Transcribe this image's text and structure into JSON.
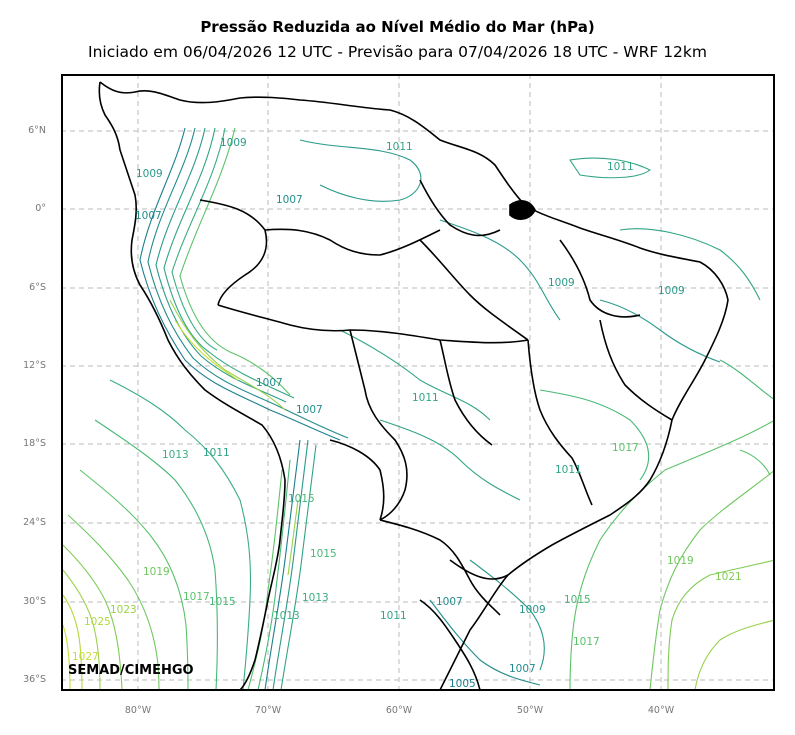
{
  "title": "Pressão Reduzida ao Nível Médio do Mar (hPa)",
  "subtitle": "Iniciado em 06/04/2026 12 UTC - Previsão para 07/04/2026 18 UTC - WRF 12km",
  "credit": "SEMAD/CIMEHGO",
  "lat_labels": [
    "6°N",
    "0°",
    "6°S",
    "12°S",
    "18°S",
    "24°S",
    "30°S",
    "36°S"
  ],
  "lon_labels": [
    "80°W",
    "70°W",
    "60°W",
    "50°W",
    "40°W"
  ],
  "contour_labels": [
    {
      "text": "1009",
      "color": "#2a9a8a"
    },
    {
      "text": "1009",
      "color": "#2a9a8a"
    },
    {
      "text": "1011",
      "color": "#31a486"
    },
    {
      "text": "1011",
      "color": "#31a486"
    },
    {
      "text": "1007",
      "color": "#228c8c"
    },
    {
      "text": "1007",
      "color": "#228c8c"
    },
    {
      "text": "1009",
      "color": "#2a9a8a"
    },
    {
      "text": "1009",
      "color": "#2a9a8a"
    },
    {
      "text": "1007",
      "color": "#228c8c"
    },
    {
      "text": "1007",
      "color": "#228c8c"
    },
    {
      "text": "1011",
      "color": "#31a486"
    },
    {
      "text": "1013",
      "color": "#3aae80"
    },
    {
      "text": "1011",
      "color": "#31a486"
    },
    {
      "text": "1017",
      "color": "#5cc26a"
    },
    {
      "text": "1019",
      "color": "#6fc85e"
    },
    {
      "text": "1017",
      "color": "#5cc26a"
    },
    {
      "text": "1015",
      "color": "#47b876"
    },
    {
      "text": "1023",
      "color": "#9ad24a"
    },
    {
      "text": "1025",
      "color": "#b2d83e"
    },
    {
      "text": "1027",
      "color": "#c8dc34"
    },
    {
      "text": "1015",
      "color": "#47b876"
    },
    {
      "text": "1013",
      "color": "#3aae80"
    },
    {
      "text": "1011",
      "color": "#31a486"
    },
    {
      "text": "1007",
      "color": "#228c8c"
    },
    {
      "text": "1009",
      "color": "#2a9a8a"
    },
    {
      "text": "1015",
      "color": "#47b876"
    },
    {
      "text": "1017",
      "color": "#5cc26a"
    },
    {
      "text": "1019",
      "color": "#6fc85e"
    },
    {
      "text": "1021",
      "color": "#82cc54"
    },
    {
      "text": "1007",
      "color": "#228c8c"
    },
    {
      "text": "1005",
      "color": "#1d7f8e"
    },
    {
      "text": "1013",
      "color": "#3aae80"
    },
    {
      "text": "1015",
      "color": "#47b876"
    },
    {
      "text": "1011",
      "color": "#31a486"
    }
  ]
}
